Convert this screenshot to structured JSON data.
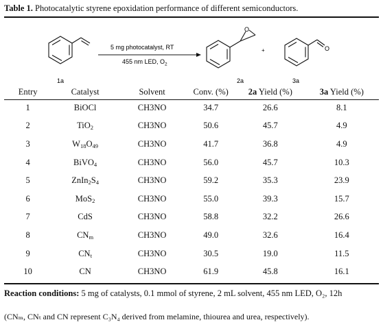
{
  "caption": {
    "label": "Table 1.",
    "text": "Photocatalytic styrene epoxidation performance of different semiconductors."
  },
  "scheme": {
    "conditions_top": "5 mg photocatalyst, RT",
    "conditions_bottom": "455 nm LED, O",
    "conditions_bottom_sub": "2",
    "plus": "+",
    "reactant_label": "1a",
    "product1_label": "2a",
    "product2_label": "3a",
    "oxygen": "O"
  },
  "table": {
    "headers": {
      "entry": "Entry",
      "catalyst": "Catalyst",
      "solvent": "Solvent",
      "conv": "Conv. (%)",
      "yield2a_bold": "2a",
      "yield2a_rest": " Yield (%)",
      "yield3a_bold": "3a",
      "yield3a_rest": " Yield (%)"
    },
    "rows": [
      {
        "entry": "1",
        "catalyst": [
          [
            "BiOCl",
            ""
          ]
        ],
        "solvent": "CH3NO",
        "conv": "34.7",
        "y2a": "26.6",
        "y3a": "8.1"
      },
      {
        "entry": "2",
        "catalyst": [
          [
            "TiO",
            "2"
          ]
        ],
        "solvent": "CH3NO",
        "conv": "50.6",
        "y2a": "45.7",
        "y3a": "4.9"
      },
      {
        "entry": "3",
        "catalyst": [
          [
            "W",
            "18"
          ],
          [
            "O",
            "49"
          ]
        ],
        "solvent": "CH3NO",
        "conv": "41.7",
        "y2a": "36.8",
        "y3a": "4.9"
      },
      {
        "entry": "4",
        "catalyst": [
          [
            "BiVO",
            "4"
          ]
        ],
        "solvent": "CH3NO",
        "conv": "56.0",
        "y2a": "45.7",
        "y3a": "10.3"
      },
      {
        "entry": "5",
        "catalyst": [
          [
            "ZnIn",
            "2"
          ],
          [
            "S",
            "4"
          ]
        ],
        "solvent": "CH3NO",
        "conv": "59.2",
        "y2a": "35.3",
        "y3a": "23.9"
      },
      {
        "entry": "6",
        "catalyst": [
          [
            "MoS",
            "2"
          ]
        ],
        "solvent": "CH3NO",
        "conv": "55.0",
        "y2a": "39.3",
        "y3a": "15.7"
      },
      {
        "entry": "7",
        "catalyst": [
          [
            "CdS",
            ""
          ]
        ],
        "solvent": "CH3NO",
        "conv": "58.8",
        "y2a": "32.2",
        "y3a": "26.6"
      },
      {
        "entry": "8",
        "catalyst": [
          [
            "CN",
            "m"
          ]
        ],
        "solvent": "CH3NO",
        "conv": "49.0",
        "y2a": "32.6",
        "y3a": "16.4"
      },
      {
        "entry": "9",
        "catalyst": [
          [
            "CN",
            "t"
          ]
        ],
        "solvent": "CH3NO",
        "conv": "30.5",
        "y2a": "19.0",
        "y3a": "11.5"
      },
      {
        "entry": "10",
        "catalyst": [
          [
            "CN",
            ""
          ]
        ],
        "solvent": "CH3NO",
        "conv": "61.9",
        "y2a": "45.8",
        "y3a": "16.1"
      }
    ]
  },
  "footnote": {
    "conditions_label": "Reaction conditions:",
    "conditions_text": "5 mg of catalysts, 0.1 mmol of styrene, 2 mL solvent, 455 nm LED, O₂, 12h",
    "note": "(CNₘ, CNₜ and CN represent C₃N₄ derived from melamine, thiourea and urea, respectively)."
  }
}
